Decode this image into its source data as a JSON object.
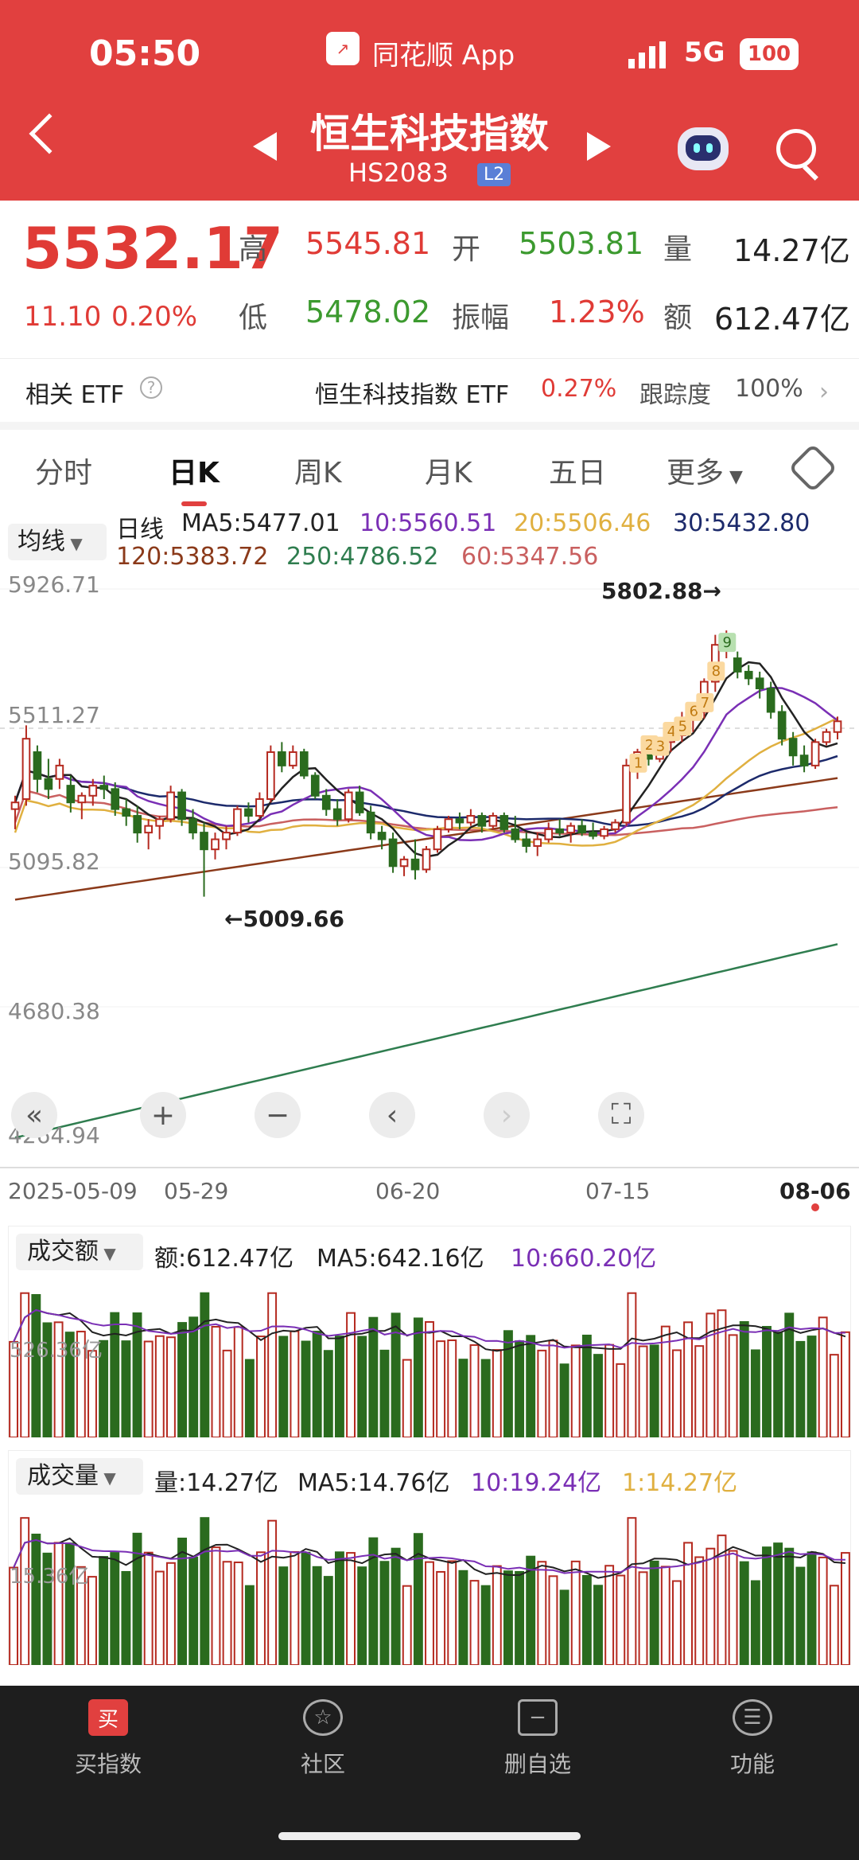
{
  "status": {
    "time": "05:50",
    "app": "同花顺 App",
    "network": "5G",
    "battery": "100"
  },
  "header": {
    "title": "恒生科技指数",
    "code": "HS2083",
    "badge": "L2"
  },
  "quote": {
    "price": "5532.17",
    "change": "11.10",
    "pct": "0.20%",
    "high_label": "高",
    "high": "5545.81",
    "open_label": "开",
    "open": "5503.81",
    "vol_label": "量",
    "vol": "14.27亿",
    "low_label": "低",
    "low": "5478.02",
    "amp_label": "振幅",
    "amp": "1.23%",
    "amt_label": "额",
    "amt": "612.47亿"
  },
  "etf": {
    "label": "相关 ETF",
    "name": "恒生科技指数 ETF",
    "pct": "0.27%",
    "track_label": "跟踪度",
    "track": "100%"
  },
  "tabs": [
    "分时",
    "日K",
    "周K",
    "月K",
    "五日",
    "更多"
  ],
  "ma": {
    "sel": "均线",
    "type": "日线",
    "ma5": "MA5:5477.01",
    "ma10": "10:5560.51",
    "ma20": "20:5506.46",
    "ma30": "30:5432.80",
    "ma120": "120:5383.72",
    "ma250": "250:4786.52",
    "ma60": "60:5347.56"
  },
  "colors": {
    "ma5": "#222222",
    "ma10": "#7a2fb5",
    "ma20": "#e0b040",
    "ma30": "#1c2a6b",
    "ma120": "#8b3a1a",
    "ma250": "#2f7d4f",
    "ma60": "#c96060",
    "up": "#b52a20",
    "down": "#2a6b1e"
  },
  "chart_data": {
    "type": "candlestick",
    "y_ticks": [
      "5926.71",
      "5511.27",
      "5095.82",
      "4680.38",
      "4264.94"
    ],
    "x_ticks": [
      "2025-05-09",
      "05-29",
      "06-20",
      "07-15",
      "08-06"
    ],
    "high_mark": "5802.88→",
    "low_mark": "←5009.66",
    "td_labels": [
      "1",
      "2",
      "3",
      "4",
      "5",
      "6",
      "7",
      "8",
      "9"
    ],
    "ohlc": [
      [
        5270,
        5310,
        5210,
        5290
      ],
      [
        5300,
        5520,
        5280,
        5480
      ],
      [
        5440,
        5460,
        5320,
        5360
      ],
      [
        5360,
        5420,
        5300,
        5330
      ],
      [
        5360,
        5420,
        5330,
        5400
      ],
      [
        5340,
        5370,
        5260,
        5290
      ],
      [
        5290,
        5320,
        5240,
        5310
      ],
      [
        5310,
        5360,
        5280,
        5340
      ],
      [
        5340,
        5370,
        5300,
        5330
      ],
      [
        5330,
        5350,
        5250,
        5270
      ],
      [
        5270,
        5300,
        5220,
        5250
      ],
      [
        5250,
        5280,
        5170,
        5200
      ],
      [
        5200,
        5240,
        5150,
        5220
      ],
      [
        5220,
        5250,
        5180,
        5240
      ],
      [
        5240,
        5340,
        5230,
        5320
      ],
      [
        5320,
        5330,
        5220,
        5240
      ],
      [
        5240,
        5270,
        5180,
        5200
      ],
      [
        5200,
        5230,
        5009,
        5150
      ],
      [
        5150,
        5200,
        5120,
        5180
      ],
      [
        5180,
        5220,
        5150,
        5200
      ],
      [
        5200,
        5280,
        5190,
        5270
      ],
      [
        5270,
        5290,
        5230,
        5250
      ],
      [
        5250,
        5320,
        5240,
        5300
      ],
      [
        5300,
        5460,
        5290,
        5440
      ],
      [
        5440,
        5470,
        5380,
        5400
      ],
      [
        5400,
        5460,
        5390,
        5440
      ],
      [
        5440,
        5450,
        5360,
        5370
      ],
      [
        5370,
        5380,
        5300,
        5310
      ],
      [
        5310,
        5330,
        5250,
        5270
      ],
      [
        5270,
        5300,
        5220,
        5240
      ],
      [
        5240,
        5330,
        5230,
        5320
      ],
      [
        5320,
        5340,
        5250,
        5260
      ],
      [
        5260,
        5280,
        5180,
        5200
      ],
      [
        5200,
        5220,
        5150,
        5180
      ],
      [
        5180,
        5200,
        5080,
        5100
      ],
      [
        5100,
        5130,
        5070,
        5120
      ],
      [
        5120,
        5180,
        5060,
        5090
      ],
      [
        5090,
        5160,
        5080,
        5150
      ],
      [
        5150,
        5220,
        5140,
        5210
      ],
      [
        5210,
        5250,
        5200,
        5240
      ],
      [
        5240,
        5260,
        5210,
        5230
      ],
      [
        5230,
        5270,
        5220,
        5250
      ],
      [
        5250,
        5260,
        5200,
        5220
      ],
      [
        5220,
        5260,
        5210,
        5250
      ],
      [
        5250,
        5260,
        5200,
        5210
      ],
      [
        5210,
        5250,
        5170,
        5180
      ],
      [
        5180,
        5200,
        5140,
        5160
      ],
      [
        5160,
        5200,
        5130,
        5180
      ],
      [
        5180,
        5230,
        5170,
        5210
      ],
      [
        5210,
        5240,
        5190,
        5200
      ],
      [
        5200,
        5230,
        5170,
        5220
      ],
      [
        5220,
        5240,
        5190,
        5200
      ],
      [
        5200,
        5230,
        5180,
        5190
      ],
      [
        5190,
        5220,
        5180,
        5210
      ],
      [
        5210,
        5240,
        5200,
        5230
      ],
      [
        5230,
        5420,
        5220,
        5400
      ],
      [
        5400,
        5450,
        5360,
        5440
      ],
      [
        5440,
        5460,
        5400,
        5420
      ],
      [
        5420,
        5480,
        5410,
        5470
      ],
      [
        5470,
        5500,
        5440,
        5490
      ],
      [
        5490,
        5560,
        5470,
        5540
      ],
      [
        5540,
        5580,
        5500,
        5560
      ],
      [
        5560,
        5660,
        5540,
        5650
      ],
      [
        5650,
        5790,
        5620,
        5760
      ],
      [
        5760,
        5803,
        5720,
        5790
      ],
      [
        5720,
        5740,
        5660,
        5680
      ],
      [
        5680,
        5700,
        5640,
        5660
      ],
      [
        5660,
        5680,
        5600,
        5630
      ],
      [
        5630,
        5650,
        5540,
        5560
      ],
      [
        5560,
        5580,
        5460,
        5480
      ],
      [
        5480,
        5500,
        5400,
        5430
      ],
      [
        5430,
        5460,
        5380,
        5400
      ],
      [
        5400,
        5480,
        5390,
        5470
      ],
      [
        5470,
        5510,
        5460,
        5500
      ],
      [
        5500,
        5546,
        5478,
        5532
      ]
    ]
  },
  "controls": {
    "first": "«",
    "zoom_in": "+",
    "zoom_out": "−",
    "prev": "‹",
    "next": "›",
    "full": "⛶"
  },
  "amount": {
    "sel": "成交额",
    "val": "额:612.47亿",
    "ma5": "MA5:642.16亿",
    "ma10": "10:660.20亿",
    "y_tick": "526.36亿"
  },
  "volume": {
    "sel": "成交量",
    "val": "量:14.27亿",
    "ma5": "MA5:14.76亿",
    "ma10": "10:19.24亿",
    "ma1": "1:14.27亿",
    "y_tick": "15.36亿"
  },
  "nav": [
    {
      "label": "买指数",
      "icon": "买"
    },
    {
      "label": "社区",
      "icon": "☆"
    },
    {
      "label": "删自选",
      "icon": "−"
    },
    {
      "label": "功能",
      "icon": "☰"
    }
  ]
}
